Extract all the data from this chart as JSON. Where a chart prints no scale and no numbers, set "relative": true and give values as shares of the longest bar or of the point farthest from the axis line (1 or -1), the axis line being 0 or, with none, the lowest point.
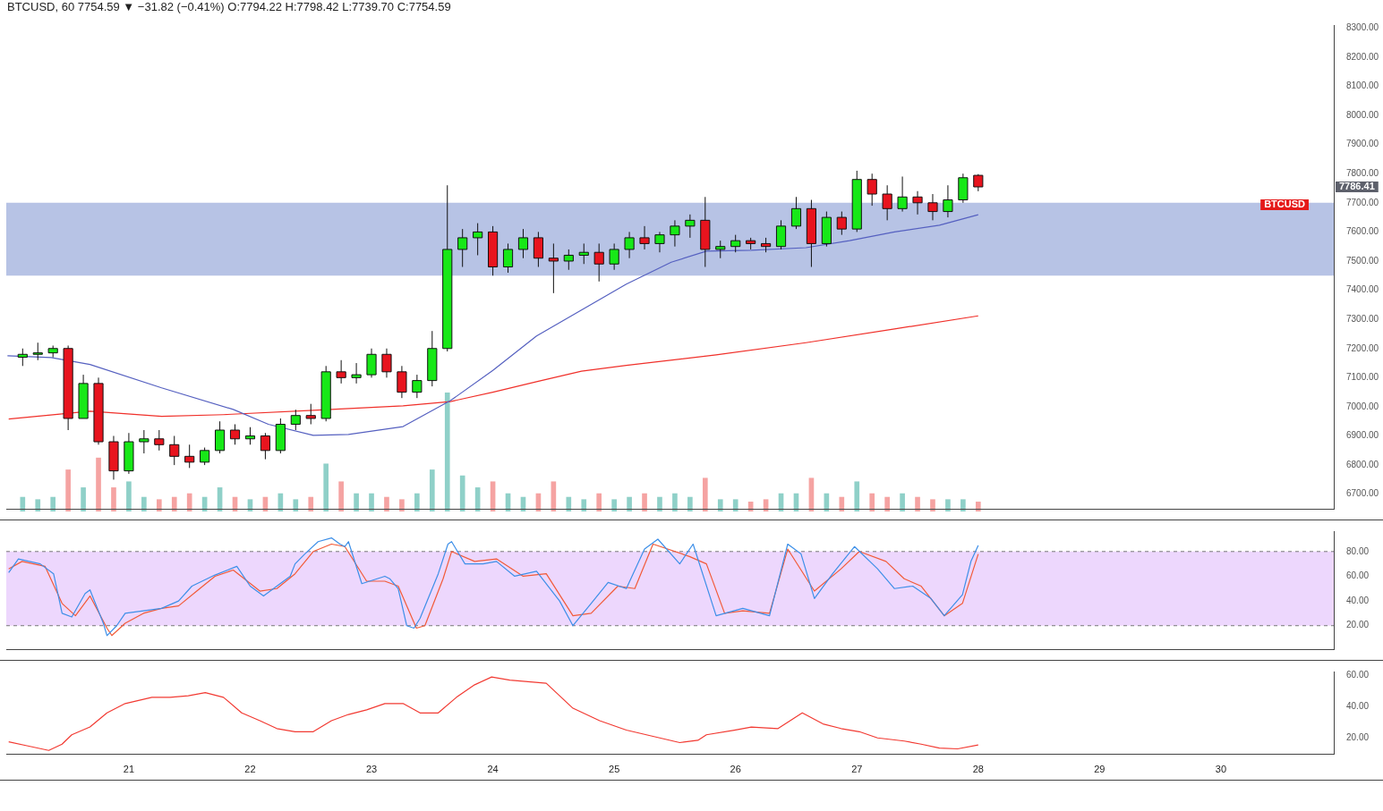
{
  "chart_data": [
    {
      "type": "candlestick",
      "title": "BTCUSD, 60  7754.59 ▼ −31.82 (−0.41%) O:7794.22 H:7798.42 L:7739.70 C:7754.59",
      "x": [
        20.125,
        20.25,
        20.375,
        20.5,
        20.625,
        20.75,
        20.875,
        21.0,
        21.125,
        21.25,
        21.375,
        21.5,
        21.625,
        21.75,
        21.875,
        22.0,
        22.125,
        22.25,
        22.375,
        22.5,
        22.625,
        22.75,
        22.875,
        23.0,
        23.125,
        23.25,
        23.375,
        23.5,
        23.625,
        23.75,
        23.875,
        24.0,
        24.125,
        24.25,
        24.375,
        24.5,
        24.625,
        24.75,
        24.875,
        25.0,
        25.125,
        25.25,
        25.375,
        25.5,
        25.625,
        25.75,
        25.875,
        26.0,
        26.125,
        26.25,
        26.375,
        26.5,
        26.625,
        26.75,
        26.875,
        27.0,
        27.125,
        27.25,
        27.375,
        27.5,
        27.625,
        27.75,
        27.875,
        28.0
      ],
      "ohlc": [
        [
          7170,
          7200,
          7140,
          7180
        ],
        [
          7180,
          7220,
          7160,
          7185
        ],
        [
          7185,
          7210,
          7170,
          7200
        ],
        [
          7200,
          7210,
          6920,
          6960
        ],
        [
          6960,
          7110,
          6960,
          7080
        ],
        [
          7080,
          7100,
          6870,
          6880
        ],
        [
          6880,
          6900,
          6750,
          6780
        ],
        [
          6780,
          6910,
          6770,
          6880
        ],
        [
          6880,
          6920,
          6840,
          6890
        ],
        [
          6890,
          6920,
          6850,
          6870
        ],
        [
          6870,
          6900,
          6800,
          6830
        ],
        [
          6830,
          6870,
          6790,
          6810
        ],
        [
          6810,
          6860,
          6800,
          6850
        ],
        [
          6850,
          6950,
          6840,
          6920
        ],
        [
          6920,
          6940,
          6870,
          6890
        ],
        [
          6890,
          6930,
          6870,
          6900
        ],
        [
          6900,
          6910,
          6820,
          6850
        ],
        [
          6850,
          6960,
          6840,
          6940
        ],
        [
          6940,
          6990,
          6920,
          6970
        ],
        [
          6970,
          7010,
          6940,
          6960
        ],
        [
          6960,
          7140,
          6950,
          7120
        ],
        [
          7120,
          7160,
          7080,
          7100
        ],
        [
          7100,
          7150,
          7080,
          7110
        ],
        [
          7110,
          7200,
          7100,
          7180
        ],
        [
          7180,
          7200,
          7100,
          7120
        ],
        [
          7120,
          7140,
          7030,
          7050
        ],
        [
          7050,
          7110,
          7030,
          7090
        ],
        [
          7090,
          7260,
          7070,
          7200
        ],
        [
          7200,
          7760,
          7190,
          7540
        ],
        [
          7540,
          7610,
          7480,
          7580
        ],
        [
          7580,
          7630,
          7520,
          7600
        ],
        [
          7600,
          7620,
          7450,
          7480
        ],
        [
          7480,
          7560,
          7460,
          7540
        ],
        [
          7540,
          7610,
          7510,
          7580
        ],
        [
          7580,
          7600,
          7480,
          7510
        ],
        [
          7510,
          7560,
          7390,
          7500
        ],
        [
          7500,
          7540,
          7470,
          7520
        ],
        [
          7520,
          7560,
          7490,
          7530
        ],
        [
          7530,
          7560,
          7430,
          7490
        ],
        [
          7490,
          7560,
          7470,
          7540
        ],
        [
          7540,
          7600,
          7510,
          7580
        ],
        [
          7580,
          7620,
          7540,
          7560
        ],
        [
          7560,
          7600,
          7530,
          7590
        ],
        [
          7590,
          7640,
          7550,
          7620
        ],
        [
          7620,
          7660,
          7580,
          7640
        ],
        [
          7640,
          7720,
          7480,
          7540
        ],
        [
          7540,
          7570,
          7510,
          7550
        ],
        [
          7550,
          7590,
          7530,
          7570
        ],
        [
          7570,
          7580,
          7540,
          7560
        ],
        [
          7560,
          7580,
          7530,
          7550
        ],
        [
          7550,
          7640,
          7540,
          7620
        ],
        [
          7620,
          7720,
          7610,
          7680
        ],
        [
          7680,
          7710,
          7480,
          7560
        ],
        [
          7560,
          7670,
          7550,
          7650
        ],
        [
          7650,
          7670,
          7590,
          7610
        ],
        [
          7610,
          7810,
          7600,
          7780
        ],
        [
          7780,
          7800,
          7690,
          7730
        ],
        [
          7730,
          7760,
          7640,
          7680
        ],
        [
          7680,
          7790,
          7670,
          7720
        ],
        [
          7720,
          7740,
          7660,
          7700
        ],
        [
          7700,
          7730,
          7640,
          7670
        ],
        [
          7670,
          7760,
          7650,
          7710
        ],
        [
          7710,
          7800,
          7700,
          7786
        ],
        [
          7794.22,
          7798.42,
          7739.7,
          7754.59
        ]
      ],
      "colors": [
        "#17e817",
        "#17e817",
        "#17e817",
        "#e8141e",
        "#17e817",
        "#e8141e",
        "#e8141e",
        "#17e817",
        "#17e817",
        "#e8141e",
        "#e8141e",
        "#e8141e",
        "#17e817",
        "#17e817",
        "#e8141e",
        "#17e817",
        "#e8141e",
        "#17e817",
        "#17e817",
        "#e8141e",
        "#17e817",
        "#e8141e",
        "#17e817",
        "#17e817",
        "#e8141e",
        "#e8141e",
        "#17e817",
        "#17e817",
        "#17e817",
        "#17e817",
        "#17e817",
        "#e8141e",
        "#17e817",
        "#17e817",
        "#e8141e",
        "#e8141e",
        "#17e817",
        "#17e817",
        "#e8141e",
        "#17e817",
        "#17e817",
        "#e8141e",
        "#17e817",
        "#17e817",
        "#17e817",
        "#e8141e",
        "#17e817",
        "#17e817",
        "#e8141e",
        "#e8141e",
        "#17e817",
        "#17e817",
        "#e8141e",
        "#17e817",
        "#e8141e",
        "#17e817",
        "#e8141e",
        "#e8141e",
        "#17e817",
        "#e8141e",
        "#e8141e",
        "#17e817",
        "#17e817",
        "#e8141e"
      ],
      "series": [
        {
          "type": "line",
          "color": "#5560c0",
          "x": [
            20.0,
            20.36,
            20.68,
            21.27,
            21.86,
            22.15,
            22.52,
            22.81,
            23.26,
            23.65,
            24.0,
            24.36,
            24.73,
            25.1,
            25.47,
            25.76,
            26.13,
            26.58,
            26.94,
            27.31,
            27.68,
            28.0
          ],
          "values": [
            7175,
            7169,
            7145,
            7065,
            6991,
            6940,
            6902,
            6905,
            6932,
            7021,
            7125,
            7243,
            7332,
            7421,
            7496,
            7534,
            7537,
            7546,
            7570,
            7600,
            7623,
            7659
          ]
        },
        {
          "type": "line",
          "color": "#f0302a",
          "x": [
            20.01,
            20.68,
            21.27,
            21.78,
            22.52,
            23.26,
            23.65,
            24.0,
            24.36,
            24.73,
            25.1,
            25.84,
            26.58,
            27.31,
            28.0
          ],
          "values": [
            6958,
            6985,
            6967,
            6973,
            6988,
            7003,
            7018,
            7050,
            7086,
            7122,
            7142,
            7178,
            7220,
            7267,
            7312
          ]
        }
      ],
      "xlim": [
        19.99,
        30.93
      ],
      "ylim": [
        6650,
        8310
      ],
      "yticks": [
        {
          "value": 6700,
          "label": "6700.00"
        },
        {
          "value": 6800,
          "label": "6800.00"
        },
        {
          "value": 6900,
          "label": "6900.00"
        },
        {
          "value": 7000,
          "label": "7000.00"
        },
        {
          "value": 7100,
          "label": "7100.00"
        },
        {
          "value": 7200,
          "label": "7200.00"
        },
        {
          "value": 7300,
          "label": "7300.00"
        },
        {
          "value": 7400,
          "label": "7400.00"
        },
        {
          "value": 7500,
          "label": "7500.00"
        },
        {
          "value": 7600,
          "label": "7600.00"
        },
        {
          "value": 7700,
          "label": "7700.00"
        },
        {
          "value": 7800,
          "label": "7800.00"
        },
        {
          "value": 7900,
          "label": "7900.00"
        },
        {
          "value": 8000,
          "label": "8000.00"
        },
        {
          "value": 8100,
          "label": "8100.00"
        },
        {
          "value": 8200,
          "label": "8200.00"
        },
        {
          "value": 8300,
          "label": "8300.00"
        }
      ],
      "bands": [
        {
          "axis": "y",
          "from": 7450,
          "to": 7700,
          "color": "#aab8e0"
        }
      ],
      "annotations": [
        "7786.41",
        "BTCUSD"
      ],
      "tick_labels": "y",
      "grid": false,
      "legend": false
    },
    {
      "type": "bar",
      "relative": true,
      "x": [
        20.125,
        20.25,
        20.375,
        20.5,
        20.625,
        20.75,
        20.875,
        21.0,
        21.125,
        21.25,
        21.375,
        21.5,
        21.625,
        21.75,
        21.875,
        22.0,
        22.125,
        22.25,
        22.375,
        22.5,
        22.625,
        22.75,
        22.875,
        23.0,
        23.125,
        23.25,
        23.375,
        23.5,
        23.625,
        23.75,
        23.875,
        24.0,
        24.125,
        24.25,
        24.375,
        24.5,
        24.625,
        24.75,
        24.875,
        25.0,
        25.125,
        25.25,
        25.375,
        25.5,
        25.625,
        25.75,
        25.875,
        26.0,
        26.125,
        26.25,
        26.375,
        26.5,
        26.625,
        26.75,
        26.875,
        27.0,
        27.125,
        27.25,
        27.375,
        27.5,
        27.625,
        27.75,
        27.875,
        28.0
      ],
      "values": [
        0.12,
        0.1,
        0.12,
        0.35,
        0.2,
        0.45,
        0.2,
        0.25,
        0.12,
        0.1,
        0.12,
        0.15,
        0.12,
        0.2,
        0.12,
        0.1,
        0.12,
        0.15,
        0.1,
        0.12,
        0.4,
        0.25,
        0.15,
        0.15,
        0.12,
        0.1,
        0.15,
        0.35,
        1,
        0.3,
        0.2,
        0.25,
        0.15,
        0.12,
        0.15,
        0.25,
        0.12,
        0.1,
        0.15,
        0.1,
        0.12,
        0.15,
        0.12,
        0.15,
        0.12,
        0.28,
        0.1,
        0.1,
        0.08,
        0.1,
        0.15,
        0.15,
        0.28,
        0.15,
        0.12,
        0.25,
        0.15,
        0.12,
        0.15,
        0.12,
        0.1,
        0.1,
        0.1,
        0.08
      ],
      "colors": [
        "#8fd0c8",
        "#8fd0c8",
        "#8fd0c8",
        "#f5a3a2",
        "#8fd0c8",
        "#f5a3a2",
        "#f5a3a2",
        "#8fd0c8",
        "#8fd0c8",
        "#f5a3a2",
        "#f5a3a2",
        "#f5a3a2",
        "#8fd0c8",
        "#8fd0c8",
        "#f5a3a2",
        "#8fd0c8",
        "#f5a3a2",
        "#8fd0c8",
        "#8fd0c8",
        "#f5a3a2",
        "#8fd0c8",
        "#f5a3a2",
        "#8fd0c8",
        "#8fd0c8",
        "#f5a3a2",
        "#f5a3a2",
        "#8fd0c8",
        "#8fd0c8",
        "#8fd0c8",
        "#8fd0c8",
        "#8fd0c8",
        "#f5a3a2",
        "#8fd0c8",
        "#8fd0c8",
        "#f5a3a2",
        "#f5a3a2",
        "#8fd0c8",
        "#8fd0c8",
        "#f5a3a2",
        "#8fd0c8",
        "#8fd0c8",
        "#f5a3a2",
        "#8fd0c8",
        "#8fd0c8",
        "#8fd0c8",
        "#f5a3a2",
        "#8fd0c8",
        "#8fd0c8",
        "#f5a3a2",
        "#f5a3a2",
        "#8fd0c8",
        "#8fd0c8",
        "#f5a3a2",
        "#8fd0c8",
        "#f5a3a2",
        "#8fd0c8",
        "#f5a3a2",
        "#f5a3a2",
        "#8fd0c8",
        "#f5a3a2",
        "#f5a3a2",
        "#8fd0c8",
        "#8fd0c8",
        "#f5a3a2"
      ],
      "xlim": [
        19.99,
        30.93
      ],
      "tick_labels": false,
      "grid": false,
      "legend": false
    },
    {
      "type": "line",
      "series": [
        {
          "color": "#3d8fe8",
          "x": [
            20.01,
            20.09,
            20.27,
            20.38,
            20.45,
            20.53,
            20.64,
            20.68,
            20.79,
            20.82,
            20.9,
            20.97,
            21.12,
            21.27,
            21.41,
            21.52,
            21.71,
            21.89,
            22.0,
            22.11,
            22.22,
            22.33,
            22.37,
            22.45,
            22.56,
            22.67,
            22.74,
            22.78,
            22.81,
            22.92,
            23.11,
            23.15,
            23.22,
            23.29,
            23.35,
            23.4,
            23.55,
            23.63,
            23.66,
            23.77,
            23.92,
            24.03,
            24.18,
            24.36,
            24.55,
            24.66,
            24.81,
            24.95,
            25.1,
            25.25,
            25.36,
            25.54,
            25.65,
            25.84,
            26.06,
            26.28,
            26.43,
            26.54,
            26.65,
            26.8,
            26.98,
            27.17,
            27.31,
            27.46,
            27.61,
            27.72,
            27.87,
            27.94,
            28.0
          ],
          "values": [
            63,
            74,
            70,
            62,
            30,
            27,
            46,
            49,
            22,
            12,
            20,
            30,
            32,
            34,
            40,
            52,
            61,
            68,
            52,
            44,
            52,
            60,
            70,
            78,
            88,
            91,
            86,
            84,
            88,
            54,
            60,
            58,
            50,
            20,
            18,
            26,
            62,
            86,
            88,
            70,
            70,
            72,
            60,
            64,
            40,
            20,
            38,
            55,
            50,
            82,
            90,
            70,
            86,
            28,
            34,
            28,
            86,
            78,
            42,
            62,
            84,
            66,
            50,
            52,
            42,
            28,
            45,
            72,
            85
          ]
        },
        {
          "color": "#f25a38",
          "x": [
            20.01,
            20.12,
            20.31,
            20.45,
            20.56,
            20.68,
            20.82,
            20.86,
            20.97,
            21.12,
            21.27,
            21.41,
            21.56,
            21.71,
            21.86,
            22.08,
            22.22,
            22.37,
            22.52,
            22.67,
            22.78,
            22.96,
            23.11,
            23.22,
            23.37,
            23.44,
            23.59,
            23.66,
            23.85,
            24.03,
            24.25,
            24.44,
            24.66,
            24.81,
            25.03,
            25.17,
            25.32,
            25.62,
            25.76,
            25.91,
            26.06,
            26.28,
            26.43,
            26.65,
            26.87,
            27.02,
            27.24,
            27.39,
            27.53,
            27.72,
            27.87,
            28.0
          ],
          "values": [
            66,
            72,
            68,
            38,
            28,
            44,
            18,
            12,
            22,
            30,
            34,
            36,
            48,
            60,
            65,
            48,
            50,
            62,
            80,
            86,
            84,
            56,
            56,
            52,
            18,
            20,
            58,
            80,
            72,
            74,
            60,
            62,
            28,
            30,
            52,
            50,
            86,
            76,
            70,
            30,
            32,
            30,
            82,
            48,
            66,
            80,
            72,
            58,
            52,
            28,
            38,
            78
          ]
        }
      ],
      "xlim": [
        19.99,
        30.93
      ],
      "ylim": [
        1,
        96.5
      ],
      "yticks": [
        {
          "value": 20,
          "label": "20.00"
        },
        {
          "value": 40,
          "label": "40.00"
        },
        {
          "value": 60,
          "label": "60.00"
        },
        {
          "value": 80,
          "label": "80.00"
        }
      ],
      "bands": [
        {
          "axis": "y",
          "from": 20,
          "to": 80,
          "color": "#ead0fd"
        }
      ],
      "ref_lines": [
        {
          "axis": "y",
          "value": 20,
          "color": "#787878",
          "line_style": "dashed"
        },
        {
          "axis": "y",
          "value": 80,
          "color": "#787878",
          "line_style": "dashed"
        }
      ],
      "tick_labels": "y",
      "grid": false,
      "legend": false,
      "marker": "none"
    },
    {
      "type": "line",
      "series": [
        {
          "color": "#f23a32",
          "x": [
            20.01,
            20.16,
            20.34,
            20.45,
            20.53,
            20.68,
            20.82,
            20.97,
            21.19,
            21.34,
            21.49,
            21.63,
            21.78,
            21.93,
            22.08,
            22.22,
            22.37,
            22.52,
            22.67,
            22.81,
            22.96,
            23.11,
            23.26,
            23.4,
            23.55,
            23.7,
            23.85,
            23.99,
            24.14,
            24.29,
            24.44,
            24.66,
            24.88,
            25.1,
            25.32,
            25.54,
            25.69,
            25.76,
            25.99,
            26.13,
            26.35,
            26.55,
            26.72,
            26.87,
            27.02,
            27.17,
            27.39,
            27.53,
            27.68,
            27.83,
            28.0
          ],
          "values": [
            17.5,
            15,
            12,
            16,
            22,
            27,
            36,
            42,
            46,
            46,
            47,
            49,
            46,
            36,
            31,
            26,
            24,
            24,
            31,
            35,
            38,
            42,
            42,
            36,
            36,
            46,
            54,
            59,
            57,
            56,
            55,
            39,
            31,
            25,
            21,
            17,
            18.5,
            22,
            25,
            27,
            26,
            36,
            29,
            26,
            24,
            20,
            18,
            16,
            13.5,
            13,
            15.5
          ]
        }
      ],
      "xlim": [
        19.99,
        30.93
      ],
      "ylim": [
        9.4,
        62.5
      ],
      "xticks": [
        21,
        22,
        23,
        24,
        25,
        26,
        27,
        28,
        29,
        30
      ],
      "yticks": [
        {
          "value": 20,
          "label": "20.00"
        },
        {
          "value": 40,
          "label": "40.00"
        },
        {
          "value": 60,
          "label": "60.00"
        }
      ],
      "grid": false,
      "legend": false,
      "marker": "none"
    }
  ]
}
